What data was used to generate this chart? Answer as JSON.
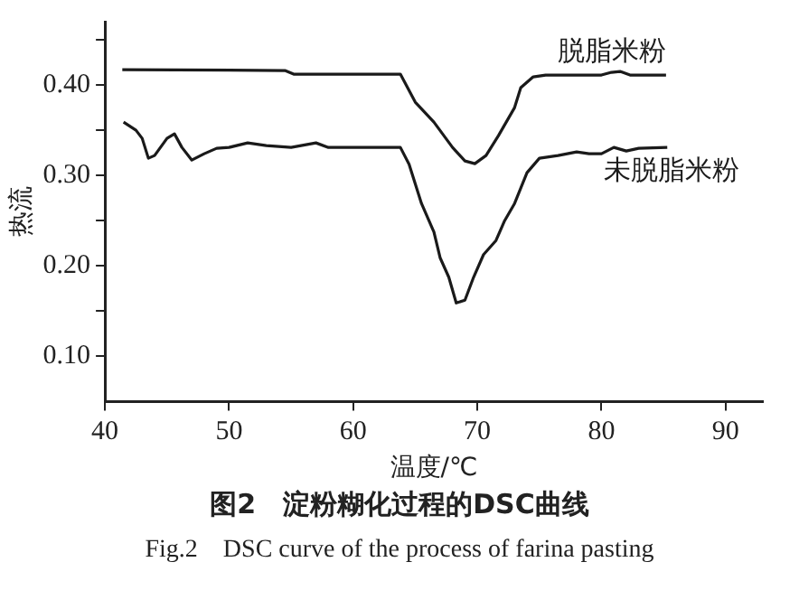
{
  "chart_data": {
    "type": "line",
    "title": "图2　淀粉糊化过程的DSC曲线",
    "subtitle": "Fig.2　DSC curve of the process of farina pasting",
    "xlabel": "温度/℃",
    "ylabel": "热流",
    "xlim": [
      40,
      93
    ],
    "xticks": [
      40,
      50,
      60,
      70,
      80,
      90
    ],
    "ylim": [
      0.05,
      0.47
    ],
    "yticks": [
      {
        "value": 0.1,
        "label": "0.10"
      },
      {
        "value": 0.15,
        "label": null
      },
      {
        "value": 0.2,
        "label": "0.20"
      },
      {
        "value": 0.25,
        "label": null
      },
      {
        "value": 0.3,
        "label": "0.30"
      },
      {
        "value": 0.35,
        "label": null
      },
      {
        "value": 0.4,
        "label": "0.40"
      },
      {
        "value": 0.45,
        "label": null
      }
    ],
    "grid": false,
    "legend": false,
    "marker": "none",
    "line_style": "solid",
    "series": [
      {
        "name": "脱脂米粉",
        "color": "#1a1a1a",
        "x": [
          41.4,
          54.5,
          55.2,
          63.8,
          65,
          66.5,
          68,
          69,
          69.8,
          70.7,
          71.7,
          73,
          73.5,
          74.5,
          75.5,
          80,
          80.8,
          81.5,
          82.3,
          85.2
        ],
        "values": [
          0.417,
          0.416,
          0.412,
          0.412,
          0.381,
          0.359,
          0.331,
          0.316,
          0.313,
          0.322,
          0.344,
          0.375,
          0.397,
          0.409,
          0.411,
          0.411,
          0.414,
          0.415,
          0.411,
          0.411
        ]
      },
      {
        "name": "未脱脂米粉",
        "color": "#1a1a1a",
        "x": [
          41.5,
          42.5,
          43,
          43.5,
          44,
          45,
          45.6,
          46.2,
          47,
          48,
          49,
          50,
          51.5,
          53,
          55,
          57,
          58,
          63.8,
          64.5,
          65.5,
          66.5,
          67,
          67.7,
          68.3,
          69,
          69.7,
          70.5,
          71.5,
          72.2,
          73,
          74,
          75,
          76.5,
          78,
          79,
          80,
          81,
          82,
          83,
          85.3
        ],
        "values": [
          0.359,
          0.35,
          0.341,
          0.319,
          0.322,
          0.341,
          0.346,
          0.331,
          0.317,
          0.324,
          0.33,
          0.331,
          0.336,
          0.333,
          0.331,
          0.336,
          0.331,
          0.331,
          0.3125,
          0.269,
          0.2375,
          0.209,
          0.1875,
          0.159,
          0.162,
          0.1875,
          0.2125,
          0.228,
          0.25,
          0.269,
          0.303,
          0.319,
          0.322,
          0.326,
          0.324,
          0.324,
          0.331,
          0.327,
          0.33,
          0.331
        ]
      }
    ]
  }
}
